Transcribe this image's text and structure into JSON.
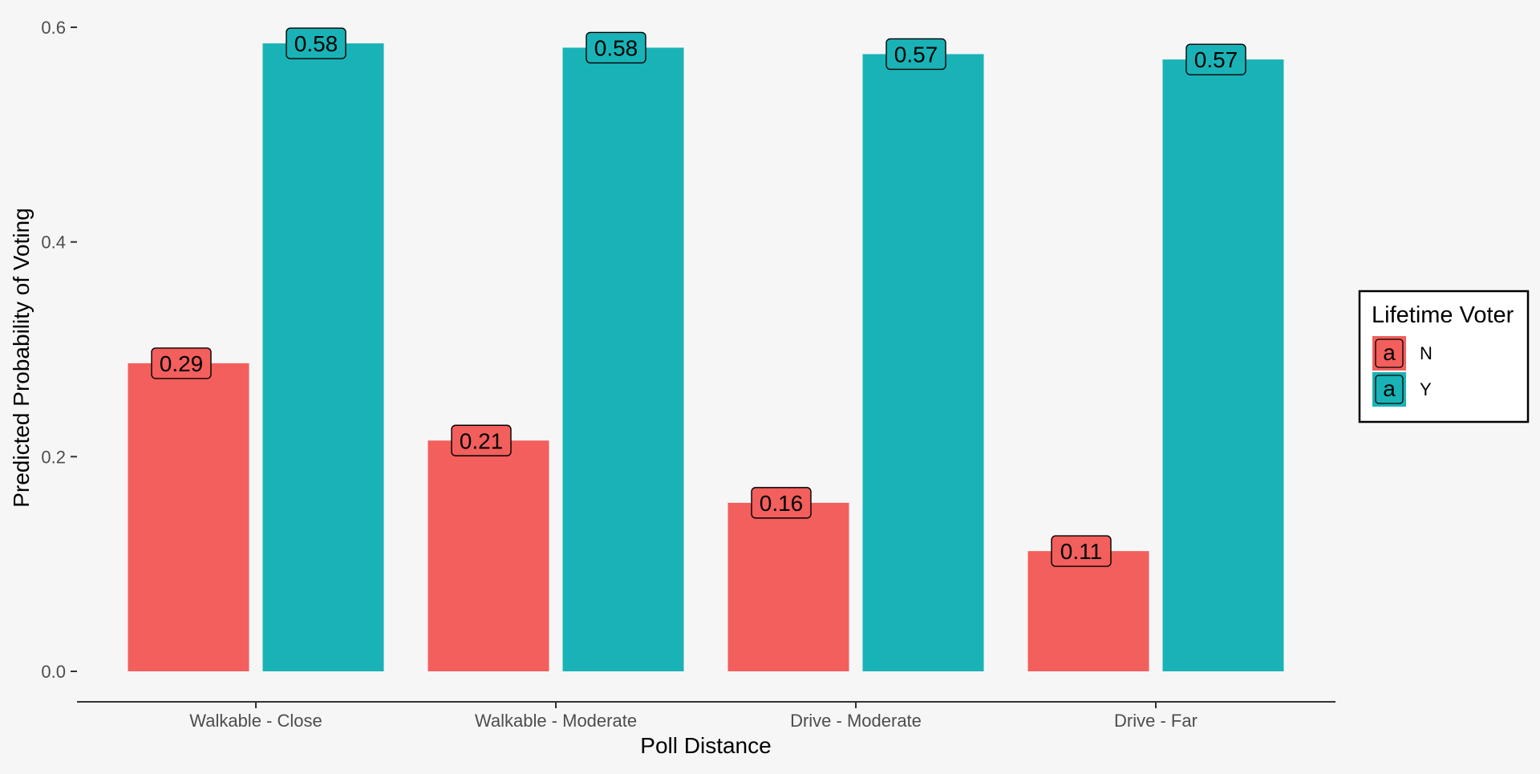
{
  "chart_data": {
    "type": "bar",
    "title": "",
    "xlabel": "Poll Distance",
    "ylabel": "Predicted Probability of Voting",
    "categories": [
      "Walkable - Close",
      "Walkable - Moderate",
      "Drive - Moderate",
      "Drive - Far"
    ],
    "series": [
      {
        "name": "N",
        "values": [
          0.287,
          0.215,
          0.157,
          0.112
        ],
        "labels": [
          "0.29",
          "0.21",
          "0.16",
          "0.11"
        ],
        "color": "#f25f5c"
      },
      {
        "name": "Y",
        "values": [
          0.585,
          0.581,
          0.575,
          0.57
        ],
        "labels": [
          "0.58",
          "0.58",
          "0.57",
          "0.57"
        ],
        "color": "#19b3b7"
      }
    ],
    "ylim": [
      0,
      0.6
    ],
    "yticks": [
      0,
      0.2,
      0.4,
      0.6
    ],
    "ytick_labels": [
      "0.0",
      "0.2",
      "0.4",
      "0.6"
    ],
    "grid": false,
    "legend": {
      "title": "Lifetime Voter",
      "key_glyph": "a",
      "entries": [
        "N",
        "Y"
      ],
      "position": "right"
    }
  },
  "colors": {
    "background": "#f7f6f6",
    "axis": "#333333",
    "tick_text": "#4d4d4d"
  }
}
